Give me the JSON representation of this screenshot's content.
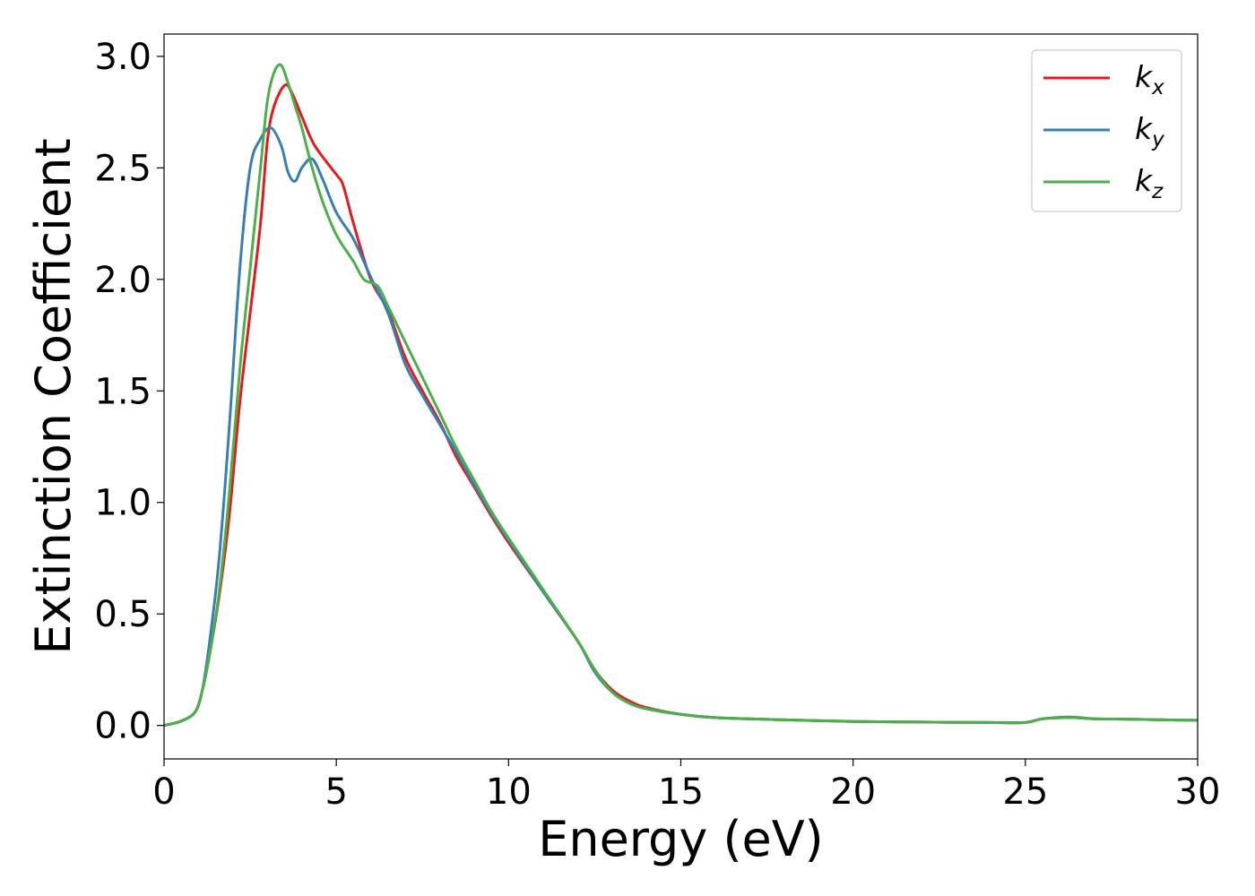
{
  "chart_data": {
    "type": "line",
    "xlabel": "Energy (eV)",
    "ylabel": "Extinction Coefficient",
    "xlim": [
      0,
      30
    ],
    "ylim": [
      -0.15,
      3.1
    ],
    "xticks": [
      0,
      5,
      10,
      15,
      20,
      25,
      30
    ],
    "yticks": [
      0.0,
      0.5,
      1.0,
      1.5,
      2.0,
      2.5,
      3.0
    ],
    "xtick_labels": [
      "0",
      "5",
      "10",
      "15",
      "20",
      "25",
      "30"
    ],
    "ytick_labels": [
      "0.0",
      "0.5",
      "1.0",
      "1.5",
      "2.0",
      "2.5",
      "3.0"
    ],
    "grid": false,
    "legend_position": "top-right",
    "series": [
      {
        "name": "k_x",
        "label_base": "k",
        "label_sub": "x",
        "color": "#e41a1c",
        "points": [
          [
            0,
            0
          ],
          [
            0.5,
            0.02
          ],
          [
            0.9,
            0.06
          ],
          [
            1.1,
            0.15
          ],
          [
            1.3,
            0.3
          ],
          [
            1.6,
            0.58
          ],
          [
            1.9,
            0.95
          ],
          [
            2.2,
            1.45
          ],
          [
            2.5,
            1.85
          ],
          [
            2.8,
            2.25
          ],
          [
            3.0,
            2.62
          ],
          [
            3.2,
            2.78
          ],
          [
            3.5,
            2.87
          ],
          [
            3.7,
            2.84
          ],
          [
            4.0,
            2.73
          ],
          [
            4.3,
            2.62
          ],
          [
            4.6,
            2.55
          ],
          [
            5.0,
            2.47
          ],
          [
            5.2,
            2.42
          ],
          [
            5.5,
            2.25
          ],
          [
            6.0,
            2.0
          ],
          [
            6.5,
            1.86
          ],
          [
            7.0,
            1.65
          ],
          [
            7.5,
            1.5
          ],
          [
            8.0,
            1.36
          ],
          [
            8.5,
            1.2
          ],
          [
            9.0,
            1.07
          ],
          [
            9.5,
            0.94
          ],
          [
            10.0,
            0.82
          ],
          [
            11.0,
            0.6
          ],
          [
            12.0,
            0.38
          ],
          [
            12.5,
            0.25
          ],
          [
            13.0,
            0.16
          ],
          [
            13.5,
            0.11
          ],
          [
            14.0,
            0.08
          ],
          [
            15.0,
            0.05
          ],
          [
            16.0,
            0.035
          ],
          [
            18.0,
            0.025
          ],
          [
            20.0,
            0.018
          ],
          [
            22.0,
            0.015
          ],
          [
            24.0,
            0.013
          ],
          [
            25.0,
            0.013
          ],
          [
            25.5,
            0.03
          ],
          [
            26.3,
            0.035
          ],
          [
            27.0,
            0.03
          ],
          [
            28.0,
            0.028
          ],
          [
            29.0,
            0.025
          ],
          [
            30.0,
            0.023
          ]
        ]
      },
      {
        "name": "k_y",
        "label_base": "k",
        "label_sub": "y",
        "color": "#377eb8",
        "points": [
          [
            0,
            0
          ],
          [
            0.5,
            0.02
          ],
          [
            0.9,
            0.06
          ],
          [
            1.1,
            0.15
          ],
          [
            1.3,
            0.35
          ],
          [
            1.6,
            0.75
          ],
          [
            1.9,
            1.35
          ],
          [
            2.2,
            2.05
          ],
          [
            2.5,
            2.5
          ],
          [
            2.8,
            2.63
          ],
          [
            3.1,
            2.68
          ],
          [
            3.4,
            2.6
          ],
          [
            3.6,
            2.48
          ],
          [
            3.8,
            2.44
          ],
          [
            4.0,
            2.5
          ],
          [
            4.3,
            2.54
          ],
          [
            4.6,
            2.45
          ],
          [
            5.0,
            2.3
          ],
          [
            5.5,
            2.18
          ],
          [
            6.0,
            2.01
          ],
          [
            6.5,
            1.85
          ],
          [
            7.0,
            1.62
          ],
          [
            7.5,
            1.48
          ],
          [
            8.0,
            1.35
          ],
          [
            8.5,
            1.22
          ],
          [
            9.0,
            1.08
          ],
          [
            9.5,
            0.95
          ],
          [
            10.0,
            0.83
          ],
          [
            11.0,
            0.6
          ],
          [
            12.0,
            0.38
          ],
          [
            12.5,
            0.24
          ],
          [
            13.0,
            0.15
          ],
          [
            13.5,
            0.1
          ],
          [
            14.0,
            0.075
          ],
          [
            15.0,
            0.05
          ],
          [
            16.0,
            0.035
          ],
          [
            18.0,
            0.025
          ],
          [
            20.0,
            0.018
          ],
          [
            22.0,
            0.015
          ],
          [
            24.0,
            0.013
          ],
          [
            25.0,
            0.013
          ],
          [
            25.5,
            0.03
          ],
          [
            26.3,
            0.038
          ],
          [
            27.0,
            0.03
          ],
          [
            28.0,
            0.028
          ],
          [
            29.0,
            0.025
          ],
          [
            30.0,
            0.023
          ]
        ]
      },
      {
        "name": "k_z",
        "label_base": "k",
        "label_sub": "z",
        "color": "#4daf4a",
        "points": [
          [
            0,
            0
          ],
          [
            0.5,
            0.02
          ],
          [
            0.9,
            0.06
          ],
          [
            1.1,
            0.15
          ],
          [
            1.3,
            0.3
          ],
          [
            1.6,
            0.6
          ],
          [
            1.9,
            1.05
          ],
          [
            2.2,
            1.6
          ],
          [
            2.5,
            2.05
          ],
          [
            2.8,
            2.5
          ],
          [
            3.0,
            2.8
          ],
          [
            3.2,
            2.93
          ],
          [
            3.4,
            2.96
          ],
          [
            3.6,
            2.88
          ],
          [
            3.8,
            2.78
          ],
          [
            4.0,
            2.68
          ],
          [
            4.3,
            2.5
          ],
          [
            4.6,
            2.35
          ],
          [
            5.0,
            2.2
          ],
          [
            5.5,
            2.08
          ],
          [
            5.8,
            2.0
          ],
          [
            6.2,
            1.97
          ],
          [
            6.5,
            1.88
          ],
          [
            7.0,
            1.72
          ],
          [
            7.5,
            1.56
          ],
          [
            8.0,
            1.4
          ],
          [
            8.5,
            1.24
          ],
          [
            9.0,
            1.1
          ],
          [
            9.5,
            0.96
          ],
          [
            10.0,
            0.84
          ],
          [
            11.0,
            0.61
          ],
          [
            12.0,
            0.38
          ],
          [
            12.5,
            0.25
          ],
          [
            13.0,
            0.15
          ],
          [
            13.5,
            0.1
          ],
          [
            14.0,
            0.075
          ],
          [
            15.0,
            0.05
          ],
          [
            16.0,
            0.035
          ],
          [
            18.0,
            0.025
          ],
          [
            20.0,
            0.018
          ],
          [
            22.0,
            0.015
          ],
          [
            24.0,
            0.013
          ],
          [
            25.0,
            0.013
          ],
          [
            25.5,
            0.03
          ],
          [
            26.3,
            0.035
          ],
          [
            27.0,
            0.03
          ],
          [
            28.0,
            0.028
          ],
          [
            29.0,
            0.025
          ],
          [
            30.0,
            0.023
          ]
        ]
      }
    ]
  }
}
